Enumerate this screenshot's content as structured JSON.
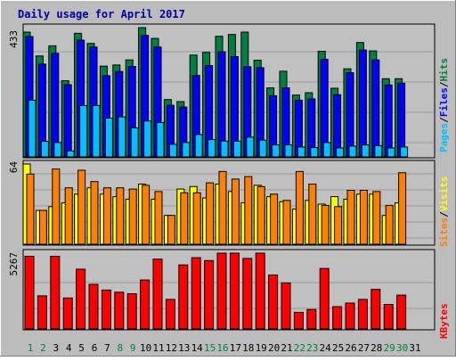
{
  "chart_data": [
    {
      "type": "bar",
      "title": "Daily usage for April 2017",
      "y_max_label": "433",
      "y_max": 433,
      "x": [
        1,
        2,
        3,
        4,
        5,
        6,
        7,
        8,
        9,
        10,
        11,
        12,
        13,
        14,
        15,
        16,
        17,
        18,
        19,
        20,
        21,
        22,
        23,
        24,
        25,
        26,
        27,
        28,
        29,
        30,
        31
      ],
      "weekend_days": [
        1,
        2,
        8,
        9,
        15,
        16,
        22,
        23,
        29,
        30
      ],
      "legend": [
        "Pages",
        "Files",
        "Hits"
      ],
      "series": [
        {
          "name": "Hits",
          "color": "#008040",
          "values": [
            418,
            338,
            372,
            255,
            414,
            380,
            304,
            308,
            325,
            433,
            397,
            192,
            185,
            341,
            350,
            404,
            410,
            418,
            324,
            231,
            287,
            207,
            215,
            354,
            230,
            295,
            383,
            355,
            262,
            262,
            0
          ]
        },
        {
          "name": "Files",
          "color": "#0000ff",
          "values": [
            403,
            311,
            347,
            242,
            391,
            368,
            272,
            286,
            303,
            407,
            368,
            173,
            167,
            273,
            306,
            352,
            336,
            302,
            299,
            205,
            231,
            190,
            194,
            327,
            208,
            282,
            358,
            325,
            241,
            247,
            0
          ]
        },
        {
          "name": "Pages",
          "color": "#00c0ff",
          "values": [
            190,
            52,
            48,
            20,
            172,
            172,
            130,
            134,
            97,
            120,
            115,
            42,
            48,
            75,
            58,
            53,
            53,
            66,
            56,
            40,
            40,
            33,
            31,
            48,
            30,
            36,
            40,
            38,
            30,
            33,
            0
          ]
        }
      ]
    },
    {
      "type": "bar",
      "y_max_label": "64",
      "y_max": 64,
      "x": [
        1,
        2,
        3,
        4,
        5,
        6,
        7,
        8,
        9,
        10,
        11,
        12,
        13,
        14,
        15,
        16,
        17,
        18,
        19,
        20,
        21,
        22,
        23,
        24,
        25,
        26,
        27,
        28,
        29,
        30,
        31
      ],
      "legend": [
        "Sites",
        "Visits"
      ],
      "series": [
        {
          "name": "Visits",
          "color": "#ffff00",
          "values": [
            64,
            27,
            30,
            33,
            40,
            45,
            40,
            38,
            36,
            48,
            36,
            23,
            44,
            46,
            37,
            48,
            42,
            33,
            47,
            38,
            34,
            28,
            35,
            32,
            38,
            36,
            40,
            40,
            23,
            33,
            0
          ]
        },
        {
          "name": "Sites",
          "color": "#ff8000",
          "values": [
            56,
            27,
            60,
            45,
            59,
            50,
            45,
            45,
            44,
            47,
            42,
            23,
            41,
            41,
            49,
            58,
            52,
            54,
            46,
            40,
            35,
            58,
            48,
            31,
            30,
            43,
            43,
            42,
            31,
            57,
            0
          ]
        }
      ]
    },
    {
      "type": "bar",
      "y_max_label": "5267",
      "y_max": 5267,
      "x": [
        1,
        2,
        3,
        4,
        5,
        6,
        7,
        8,
        9,
        10,
        11,
        12,
        13,
        14,
        15,
        16,
        17,
        18,
        19,
        20,
        21,
        22,
        23,
        24,
        25,
        26,
        27,
        28,
        29,
        30,
        31
      ],
      "legend": [
        "KBytes"
      ],
      "series": [
        {
          "name": "KBytes",
          "color": "#ff0000",
          "values": [
            5050,
            2300,
            5050,
            2150,
            4150,
            3100,
            2700,
            2550,
            2450,
            3400,
            4850,
            2050,
            4450,
            4950,
            4750,
            5267,
            5267,
            4900,
            5267,
            3750,
            3200,
            1150,
            1350,
            4200,
            1550,
            1800,
            2050,
            2750,
            1700,
            2350,
            0
          ]
        }
      ]
    }
  ]
}
